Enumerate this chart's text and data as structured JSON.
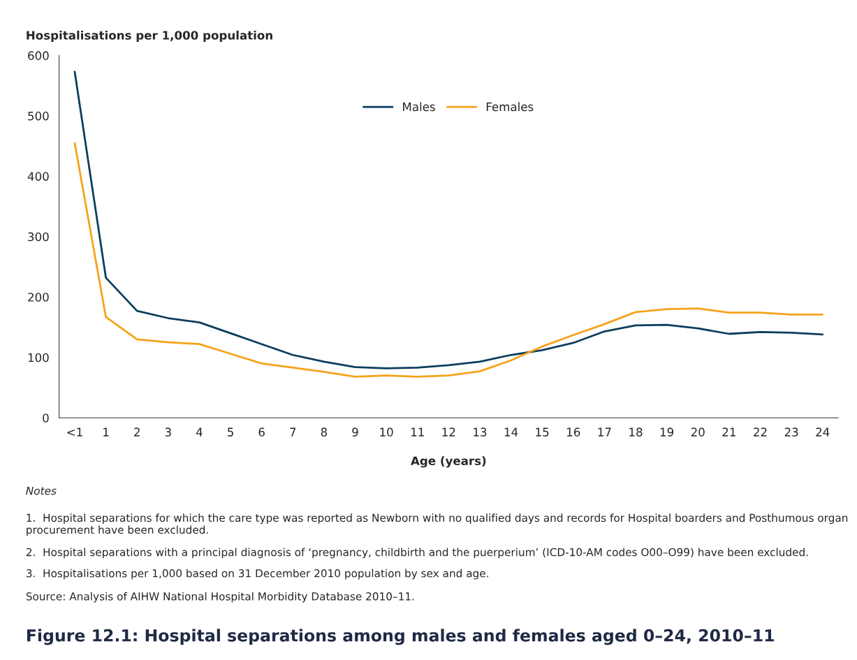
{
  "chart_data": {
    "type": "line",
    "title": "Figure 12.1: Hospital separations among males and females aged 0–24, 2010–11",
    "ylabel": "Hospitalisations per 1,000 population",
    "xlabel": "Age (years)",
    "categories": [
      "<1",
      "1",
      "2",
      "3",
      "4",
      "5",
      "6",
      "7",
      "8",
      "9",
      "10",
      "11",
      "12",
      "13",
      "14",
      "15",
      "16",
      "17",
      "18",
      "19",
      "20",
      "21",
      "22",
      "23",
      "24"
    ],
    "series": [
      {
        "name": "Males",
        "color": "#0b3d5c",
        "values": [
          573,
          232,
          177,
          165,
          158,
          140,
          122,
          104,
          93,
          84,
          82,
          83,
          87,
          93,
          104,
          112,
          124,
          143,
          153,
          154,
          148,
          139,
          142,
          141,
          138
        ]
      },
      {
        "name": "Females",
        "color": "#f5a31a",
        "values": [
          455,
          167,
          130,
          125,
          122,
          106,
          90,
          83,
          76,
          68,
          70,
          68,
          70,
          77,
          95,
          118,
          137,
          155,
          175,
          180,
          181,
          174,
          174,
          171,
          171
        ]
      }
    ],
    "ylim": [
      0,
      600
    ],
    "yticks": [
      0,
      100,
      200,
      300,
      400,
      500,
      600
    ],
    "grid": false,
    "legend": "top",
    "marker": "none",
    "line_style": "solid",
    "annotations": [
      "Notes",
      "1.  Hospital separations for which the care type was reported as Newborn with no qualified days and records for Hospital boarders and Posthumous organ procurement have been excluded.",
      "2.  Hospital separations with a principal diagnosis of ‘pregnancy, childbirth and the puerperium’ (ICD-10-AM codes O00–O99) have been excluded.",
      "3.  Hospitalisations per 1,000 based on 31 December 2010 population by sex and age.",
      "Source: Analysis of AIHW National Hospital Morbidity Database 2010–11."
    ]
  }
}
